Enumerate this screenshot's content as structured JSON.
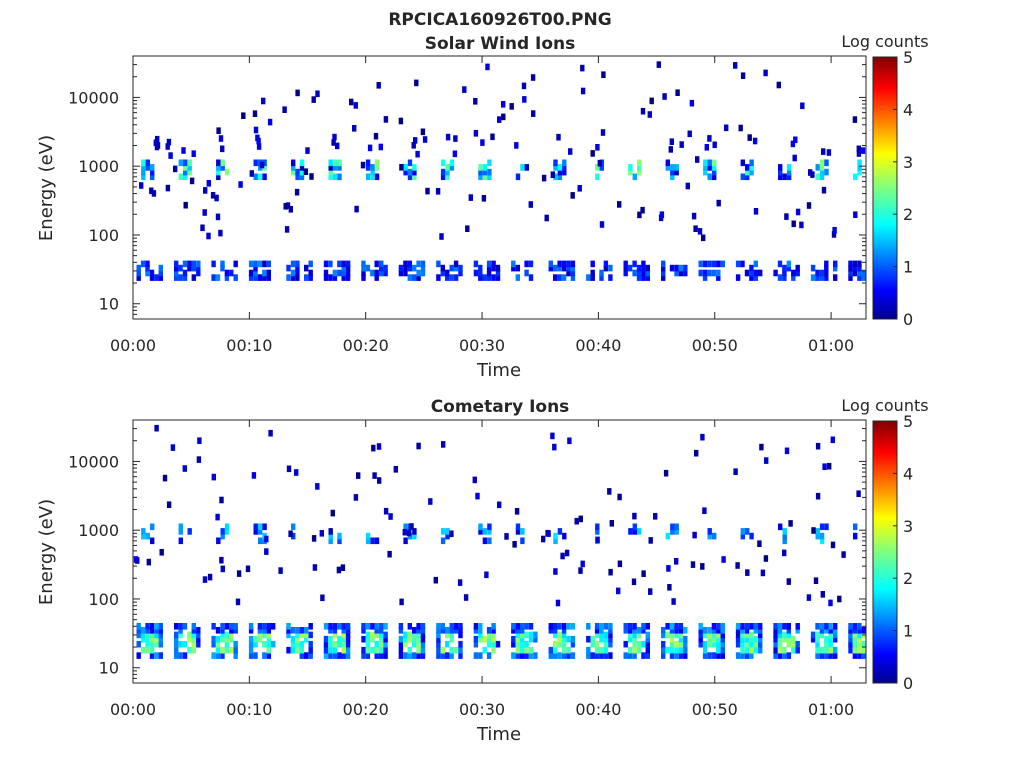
{
  "figure_title": "RPCICA160926T00.PNG",
  "chart_data": [
    {
      "type": "heatmap",
      "title": "Solar Wind Ions",
      "xlabel": "Time",
      "ylabel": "Energy (eV)",
      "x_ticks": [
        "00:00",
        "00:10",
        "00:20",
        "00:30",
        "00:40",
        "00:50",
        "01:00"
      ],
      "x_tick_minutes": [
        0,
        10,
        20,
        30,
        40,
        50,
        60
      ],
      "xlim_minutes": [
        0,
        63
      ],
      "y_scale": "log",
      "y_ticks": [
        "10",
        "100",
        "1000",
        "10000"
      ],
      "y_tick_values": [
        10,
        100,
        1000,
        10000
      ],
      "ylim": [
        6,
        40000
      ],
      "colorbar": {
        "label": "Log counts",
        "ticks": [
          "0",
          "1",
          "2",
          "3",
          "4",
          "5"
        ],
        "range": [
          0,
          5
        ],
        "colormap": "jet"
      },
      "features": [
        {
          "energy_ev": 28,
          "log_counts_range": [
            0.3,
            1.9
          ],
          "pattern": "periodic bursts every ~3.2 min, full time range"
        },
        {
          "energy_ev": 900,
          "log_counts_range": [
            0.3,
            2.6
          ],
          "pattern": "periodic bursts every ~3.2 min, full time range"
        },
        {
          "energy_ev": "100-30000",
          "log_counts_range": [
            0,
            1
          ],
          "pattern": "sparse isolated counts"
        }
      ]
    },
    {
      "type": "heatmap",
      "title": "Cometary Ions",
      "xlabel": "Time",
      "ylabel": "Energy (eV)",
      "x_ticks": [
        "00:00",
        "00:10",
        "00:20",
        "00:30",
        "00:40",
        "00:50",
        "01:00"
      ],
      "x_tick_minutes": [
        0,
        10,
        20,
        30,
        40,
        50,
        60
      ],
      "xlim_minutes": [
        0,
        63
      ],
      "y_scale": "log",
      "y_ticks": [
        "10",
        "100",
        "1000",
        "10000"
      ],
      "y_tick_values": [
        10,
        100,
        1000,
        10000
      ],
      "ylim": [
        6,
        40000
      ],
      "colorbar": {
        "label": "Log counts",
        "ticks": [
          "0",
          "1",
          "2",
          "3",
          "4",
          "5"
        ],
        "range": [
          0,
          5
        ],
        "colormap": "jet"
      },
      "features": [
        {
          "energy_ev": 28,
          "log_counts_range": [
            0.5,
            2.8
          ],
          "pattern": "periodic bursts every ~3.2 min, full time range"
        },
        {
          "energy_ev": 950,
          "log_counts_range": [
            0.3,
            1.8
          ],
          "pattern": "periodic bursts every ~3.2 min, full time range"
        },
        {
          "energy_ev": "100-30000",
          "log_counts_range": [
            0,
            1
          ],
          "pattern": "sparse isolated counts"
        }
      ]
    }
  ]
}
